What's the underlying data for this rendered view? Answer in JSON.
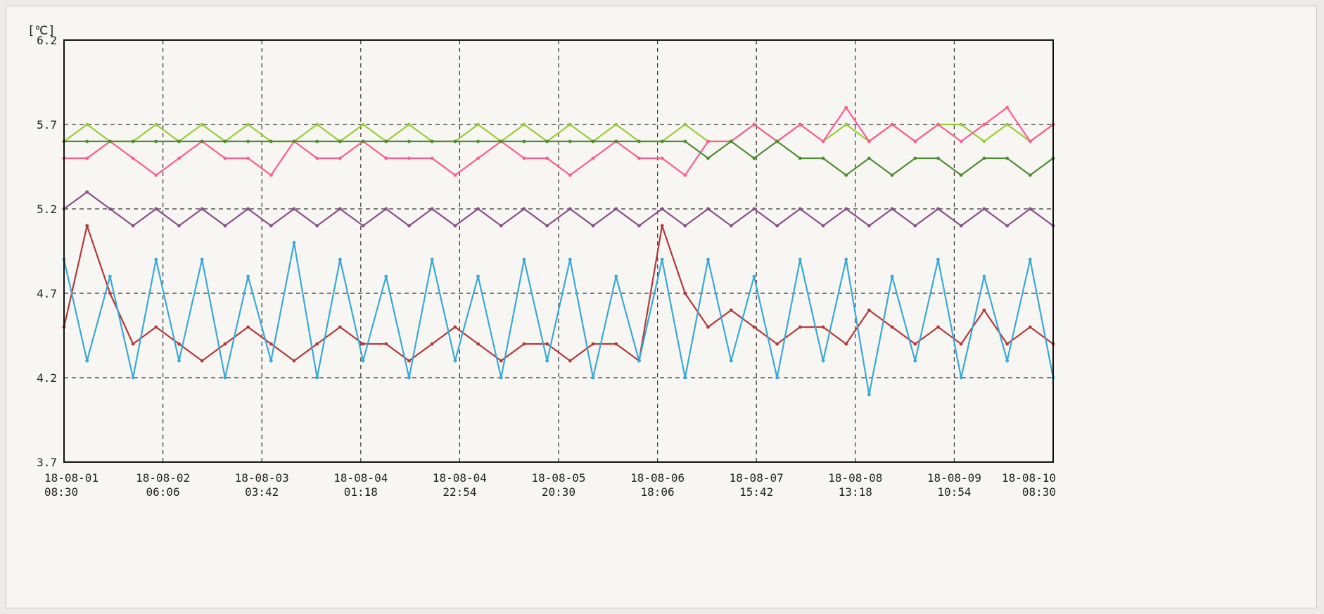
{
  "chart_data": {
    "type": "line",
    "ylabel": "[℃]",
    "ylim": [
      3.7,
      6.2
    ],
    "yticks": [
      "6.2",
      "5.7",
      "5.2",
      "4.7",
      "4.2",
      "3.7"
    ],
    "x_tick_labels": [
      [
        "18-08-01",
        "08:30"
      ],
      [
        "18-08-02",
        "06:06"
      ],
      [
        "18-08-03",
        "03:42"
      ],
      [
        "18-08-04",
        "01:18"
      ],
      [
        "18-08-04",
        "22:54"
      ],
      [
        "18-08-05",
        "20:30"
      ],
      [
        "18-08-06",
        "18:06"
      ],
      [
        "18-08-07",
        "15:42"
      ],
      [
        "18-08-08",
        "13:18"
      ],
      [
        "18-08-09",
        "10:54"
      ],
      [
        "18-08-10",
        "08:30"
      ]
    ],
    "grid": true,
    "series": [
      {
        "color": "#9acd32",
        "values": [
          5.6,
          5.7,
          5.6,
          5.6,
          5.7,
          5.6,
          5.7,
          5.6,
          5.7,
          5.6,
          5.6,
          5.7,
          5.6,
          5.7,
          5.6,
          5.7,
          5.6,
          5.6,
          5.7,
          5.6,
          5.7,
          5.6,
          5.7,
          5.6,
          5.7,
          5.6,
          5.6,
          5.7,
          5.6,
          5.6,
          5.7,
          5.6,
          5.7,
          5.6,
          5.7,
          5.6,
          5.7,
          5.6,
          5.7,
          5.7,
          5.6,
          5.7,
          5.6,
          5.7
        ]
      },
      {
        "color": "#ff5a96",
        "values": [
          5.5,
          5.5,
          5.6,
          5.5,
          5.4,
          5.5,
          5.6,
          5.5,
          5.5,
          5.4,
          5.6,
          5.5,
          5.5,
          5.6,
          5.5,
          5.5,
          5.5,
          5.4,
          5.5,
          5.6,
          5.5,
          5.5,
          5.4,
          5.5,
          5.6,
          5.5,
          5.5,
          5.4,
          5.6,
          5.6,
          5.7,
          5.6,
          5.7,
          5.6,
          5.8,
          5.6,
          5.7,
          5.6,
          5.7,
          5.6,
          5.7,
          5.8,
          5.6,
          5.7
        ]
      },
      {
        "color": "#4e8c32",
        "values": [
          5.6,
          5.6,
          5.6,
          5.6,
          5.6,
          5.6,
          5.6,
          5.6,
          5.6,
          5.6,
          5.6,
          5.6,
          5.6,
          5.6,
          5.6,
          5.6,
          5.6,
          5.6,
          5.6,
          5.6,
          5.6,
          5.6,
          5.6,
          5.6,
          5.6,
          5.6,
          5.6,
          5.6,
          5.5,
          5.6,
          5.5,
          5.6,
          5.5,
          5.5,
          5.4,
          5.5,
          5.4,
          5.5,
          5.5,
          5.4,
          5.5,
          5.5,
          5.4,
          5.5
        ]
      },
      {
        "color": "#8a4f86",
        "values": [
          5.2,
          5.3,
          5.2,
          5.1,
          5.2,
          5.1,
          5.2,
          5.1,
          5.2,
          5.1,
          5.2,
          5.1,
          5.2,
          5.1,
          5.2,
          5.1,
          5.2,
          5.1,
          5.2,
          5.1,
          5.2,
          5.1,
          5.2,
          5.1,
          5.2,
          5.1,
          5.2,
          5.1,
          5.2,
          5.1,
          5.2,
          5.1,
          5.2,
          5.1,
          5.2,
          5.1,
          5.2,
          5.1,
          5.2,
          5.1,
          5.2,
          5.1,
          5.2,
          5.1
        ]
      },
      {
        "color": "#b23a3a",
        "values": [
          4.5,
          5.1,
          4.7,
          4.4,
          4.5,
          4.4,
          4.3,
          4.4,
          4.5,
          4.4,
          4.3,
          4.4,
          4.5,
          4.4,
          4.4,
          4.3,
          4.4,
          4.5,
          4.4,
          4.3,
          4.4,
          4.4,
          4.3,
          4.4,
          4.4,
          4.3,
          5.1,
          4.7,
          4.5,
          4.6,
          4.5,
          4.4,
          4.5,
          4.5,
          4.4,
          4.6,
          4.5,
          4.4,
          4.5,
          4.4,
          4.6,
          4.4,
          4.5,
          4.4
        ]
      },
      {
        "color": "#3aa9d6",
        "values": [
          4.9,
          4.3,
          4.8,
          4.2,
          4.9,
          4.3,
          4.9,
          4.2,
          4.8,
          4.3,
          5.0,
          4.2,
          4.9,
          4.3,
          4.8,
          4.2,
          4.9,
          4.3,
          4.8,
          4.2,
          4.9,
          4.3,
          4.9,
          4.2,
          4.8,
          4.3,
          4.9,
          4.2,
          4.9,
          4.3,
          4.8,
          4.2,
          4.9,
          4.3,
          4.9,
          4.1,
          4.8,
          4.3,
          4.9,
          4.2,
          4.8,
          4.3,
          4.9,
          4.2
        ]
      }
    ]
  }
}
